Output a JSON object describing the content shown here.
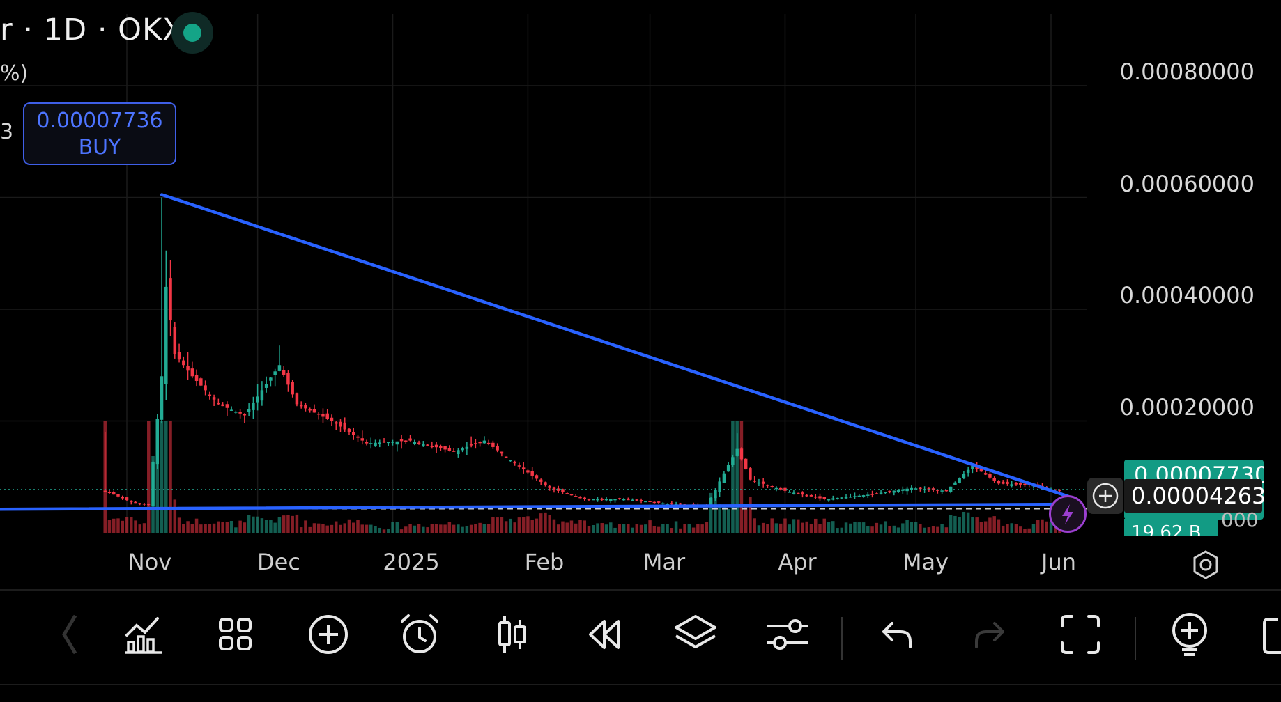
{
  "header": {
    "title": "r · 1D · OKX",
    "frag_percent": "%)",
    "frag_value": "3"
  },
  "order_label": {
    "price": "0.00007736",
    "side": "BUY"
  },
  "price_axis": {
    "ticks": [
      "0.00080000",
      "0.00060000",
      "0.00040000",
      "0.00020000"
    ],
    "last_price_tag": "0.00007730",
    "crosshair_price": "0.00004263",
    "volume_tag": "19.62 B",
    "volume_axis_fragment": "000"
  },
  "time_axis": {
    "ticks": [
      "Nov",
      "Dec",
      "2025",
      "Feb",
      "Mar",
      "Apr",
      "May",
      "Jun"
    ]
  },
  "colors": {
    "up": "#22ab94",
    "down": "#f23645",
    "trendline": "#2962ff",
    "background": "#000000",
    "buy_accent": "#4d74ff"
  },
  "toolbar": {
    "items": [
      {
        "name": "indicators-icon"
      },
      {
        "name": "templates-icon"
      },
      {
        "name": "add-icon"
      },
      {
        "name": "alert-icon"
      },
      {
        "name": "chart-type-icon"
      },
      {
        "name": "replay-icon"
      },
      {
        "name": "layers-icon"
      },
      {
        "name": "settings-sliders-icon"
      },
      {
        "name": "undo-icon"
      },
      {
        "name": "redo-icon"
      },
      {
        "name": "fullscreen-icon"
      },
      {
        "name": "ideas-icon"
      }
    ]
  },
  "chart_data": {
    "type": "candlestick",
    "title": "",
    "ylim": [
      0,
      0.00088
    ],
    "x_ticks": [
      "Nov",
      "Dec",
      "2025",
      "Feb",
      "Mar",
      "Apr",
      "May",
      "Jun"
    ],
    "y_ticks": [
      0.0008,
      0.0006,
      0.0004,
      0.0002
    ],
    "last_price": 7.73e-05,
    "order_price": 7.736e-05,
    "crosshair_price": 4.263e-05,
    "trendlines": [
      {
        "from": {
          "x": "2024-11-09",
          "y": 0.000605
        },
        "to": {
          "x": "2025-06-05",
          "y": 6.5e-05
        }
      },
      {
        "from": {
          "x": "2024-10-01",
          "y": 4.2e-05
        },
        "to": {
          "x": "2025-06-05",
          "y": 5.1e-05
        }
      }
    ],
    "close_series": [
      {
        "x": "2024-10-27",
        "close": 7.5e-05
      },
      {
        "x": "2024-11-02",
        "close": 5.5e-05
      },
      {
        "x": "2024-11-06",
        "close": 5e-05
      },
      {
        "x": "2024-11-09",
        "close": 0.00028
      },
      {
        "x": "2024-11-10",
        "close": 0.00044
      },
      {
        "x": "2024-11-12",
        "close": 0.00032
      },
      {
        "x": "2024-11-16",
        "close": 0.00028
      },
      {
        "x": "2024-11-22",
        "close": 0.00023
      },
      {
        "x": "2024-11-28",
        "close": 0.00021
      },
      {
        "x": "2024-12-06",
        "close": 0.0003
      },
      {
        "x": "2024-12-10",
        "close": 0.00023
      },
      {
        "x": "2024-12-18",
        "close": 0.0002
      },
      {
        "x": "2024-12-26",
        "close": 0.00016
      },
      {
        "x": "2025-01-05",
        "close": 0.000165
      },
      {
        "x": "2025-01-15",
        "close": 0.000145
      },
      {
        "x": "2025-01-22",
        "close": 0.000165
      },
      {
        "x": "2025-01-28",
        "close": 0.00013
      },
      {
        "x": "2025-02-06",
        "close": 8e-05
      },
      {
        "x": "2025-02-14",
        "close": 6e-05
      },
      {
        "x": "2025-02-24",
        "close": 6e-05
      },
      {
        "x": "2025-03-05",
        "close": 5.2e-05
      },
      {
        "x": "2025-03-14",
        "close": 4.8e-05
      },
      {
        "x": "2025-03-21",
        "close": 0.00015
      },
      {
        "x": "2025-03-24",
        "close": 9.5e-05
      },
      {
        "x": "2025-04-01",
        "close": 7.5e-05
      },
      {
        "x": "2025-04-10",
        "close": 6e-05
      },
      {
        "x": "2025-04-20",
        "close": 6.8e-05
      },
      {
        "x": "2025-04-30",
        "close": 8e-05
      },
      {
        "x": "2025-05-08",
        "close": 7.5e-05
      },
      {
        "x": "2025-05-14",
        "close": 0.00012
      },
      {
        "x": "2025-05-20",
        "close": 8.8e-05
      },
      {
        "x": "2025-05-28",
        "close": 8.5e-05
      },
      {
        "x": "2025-06-03",
        "close": 7.5e-05
      }
    ]
  }
}
